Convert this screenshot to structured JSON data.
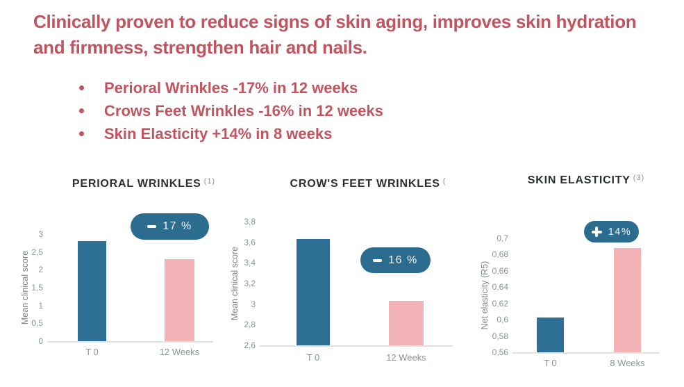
{
  "page": {
    "background": "#ffffff",
    "title": "Clinically proven to reduce signs of skin aging, improves skin hydration and firmness, strengthen hair and nails.",
    "bullets": [
      "Perioral Wrinkles -17% in 12 weeks",
      "Crows Feet Wrinkles -16% in 12 weeks",
      "Skin Elasticity +14% in 8 weeks"
    ]
  },
  "colors": {
    "accent_red": "#c2545f",
    "bar_blue": "#2e7095",
    "bar_pink": "#f1b3b6",
    "badge_teal": "#2c6d8f",
    "chart_title": "#2b2e33",
    "axis_text": "#8d929a",
    "axis_line": "#e2e2e2",
    "badge_text": "#eef5f9"
  },
  "chart_data": [
    {
      "type": "bar",
      "title": "PERIORAL WRINKLES",
      "superscript": "(1)",
      "ylabel": "Mean clinical score",
      "xlabel": "",
      "categories": [
        "T 0",
        "12 Weeks"
      ],
      "values": [
        2.8,
        2.3
      ],
      "ylim": [
        0,
        3
      ],
      "yticks": [
        "3",
        "2,5",
        "2",
        "1,5",
        "1",
        "0,5",
        "0"
      ],
      "badge": {
        "sign": "-",
        "text": "17 %"
      },
      "grid": false,
      "legend": false
    },
    {
      "type": "bar",
      "title": "CROW'S FEET WRINKLES",
      "superscript": "(",
      "ylabel": "Mean clinical score",
      "xlabel": "",
      "categories": [
        "T 0",
        "12 Weeks"
      ],
      "values": [
        3.63,
        3.03
      ],
      "ylim": [
        2.6,
        3.8
      ],
      "yticks": [
        "3,8",
        "3,6",
        "3,4",
        "3,2",
        "3",
        "2,8",
        "2,6"
      ],
      "badge": {
        "sign": "-",
        "text": "16 %"
      },
      "grid": false,
      "legend": false
    },
    {
      "type": "bar",
      "title": "SKIN ELASTICITY",
      "superscript": "(3)",
      "ylabel": "Net elasticity (R5)",
      "xlabel": "",
      "categories": [
        "T 0",
        "8 Weeks"
      ],
      "values": [
        0.603,
        0.688
      ],
      "ylim": [
        0.56,
        0.7
      ],
      "yticks": [
        "0,7",
        "0,68",
        "0,66",
        "0,64",
        "0,62",
        "0,6",
        "0,58",
        "0,56"
      ],
      "badge": {
        "sign": "+",
        "text": "14%"
      },
      "grid": false,
      "legend": false
    }
  ]
}
